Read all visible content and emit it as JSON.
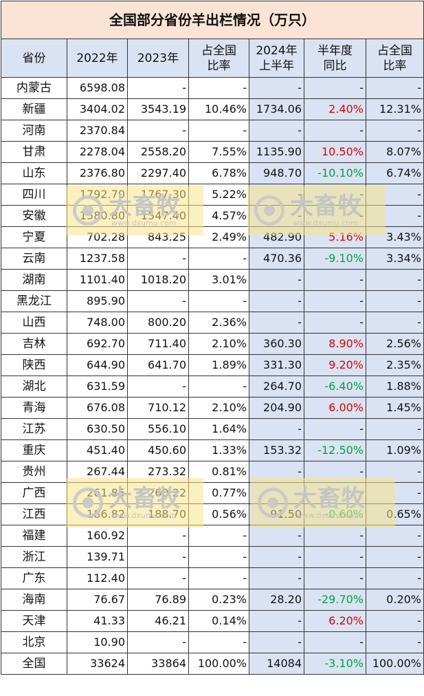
{
  "title": "全国部分省份羊出栏情况（万只）",
  "headers": [
    "省份",
    "2022年",
    "2023年",
    "占全国比率",
    "2024年上半年",
    "半年度同比",
    "占全国比率"
  ],
  "header_display": [
    "省份",
    "2022年",
    "2023年",
    "占全国\n比率",
    "2024年\n上半年",
    "半年度\n同比",
    "占全国\n比率"
  ],
  "rows": [
    {
      "province": "内蒙古",
      "y2022": "6598.08",
      "y2023": "-",
      "share2023": "-",
      "h2024": "-",
      "yoy": "-",
      "share2024": "-"
    },
    {
      "province": "新疆",
      "y2022": "3404.02",
      "y2023": "3543.19",
      "share2023": "10.46%",
      "h2024": "1734.06",
      "yoy": "2.40%",
      "share2024": "12.31%"
    },
    {
      "province": "河南",
      "y2022": "2370.84",
      "y2023": "-",
      "share2023": "-",
      "h2024": "-",
      "yoy": "-",
      "share2024": "-"
    },
    {
      "province": "甘肃",
      "y2022": "2278.04",
      "y2023": "2558.20",
      "share2023": "7.55%",
      "h2024": "1135.90",
      "yoy": "10.50%",
      "share2024": "8.07%"
    },
    {
      "province": "山东",
      "y2022": "2376.80",
      "y2023": "2297.40",
      "share2023": "6.78%",
      "h2024": "948.70",
      "yoy": "-10.10%",
      "share2024": "6.74%"
    },
    {
      "province": "四川",
      "y2022": "1792.70",
      "y2023": "1767.30",
      "share2023": "5.22%",
      "h2024": "-",
      "yoy": "-",
      "share2024": "-"
    },
    {
      "province": "安徽",
      "y2022": "1580.80",
      "y2023": "1547.40",
      "share2023": "4.57%",
      "h2024": "-",
      "yoy": "-",
      "share2024": "-"
    },
    {
      "province": "宁夏",
      "y2022": "702.28",
      "y2023": "843.25",
      "share2023": "2.49%",
      "h2024": "482.90",
      "yoy": "5.16%",
      "share2024": "3.43%"
    },
    {
      "province": "云南",
      "y2022": "1237.58",
      "y2023": "-",
      "share2023": "-",
      "h2024": "470.36",
      "yoy": "-9.10%",
      "share2024": "3.34%"
    },
    {
      "province": "湖南",
      "y2022": "1101.40",
      "y2023": "1018.20",
      "share2023": "3.01%",
      "h2024": "-",
      "yoy": "-",
      "share2024": "-"
    },
    {
      "province": "黑龙江",
      "y2022": "895.90",
      "y2023": "-",
      "share2023": "-",
      "h2024": "-",
      "yoy": "-",
      "share2024": "-"
    },
    {
      "province": "山西",
      "y2022": "748.00",
      "y2023": "800.20",
      "share2023": "2.36%",
      "h2024": "-",
      "yoy": "-",
      "share2024": "-"
    },
    {
      "province": "吉林",
      "y2022": "692.70",
      "y2023": "711.40",
      "share2023": "2.10%",
      "h2024": "360.30",
      "yoy": "8.90%",
      "share2024": "2.56%"
    },
    {
      "province": "陕西",
      "y2022": "644.90",
      "y2023": "641.70",
      "share2023": "1.89%",
      "h2024": "331.30",
      "yoy": "9.20%",
      "share2024": "2.35%"
    },
    {
      "province": "湖北",
      "y2022": "631.59",
      "y2023": "-",
      "share2023": "-",
      "h2024": "264.70",
      "yoy": "-6.40%",
      "share2024": "1.88%"
    },
    {
      "province": "青海",
      "y2022": "676.08",
      "y2023": "710.12",
      "share2023": "2.10%",
      "h2024": "204.90",
      "yoy": "6.00%",
      "share2024": "1.45%"
    },
    {
      "province": "江苏",
      "y2022": "630.50",
      "y2023": "556.10",
      "share2023": "1.64%",
      "h2024": "-",
      "yoy": "-",
      "share2024": "-"
    },
    {
      "province": "重庆",
      "y2022": "451.40",
      "y2023": "450.60",
      "share2023": "1.33%",
      "h2024": "153.32",
      "yoy": "-12.50%",
      "share2024": "1.09%"
    },
    {
      "province": "贵州",
      "y2022": "267.44",
      "y2023": "273.32",
      "share2023": "0.81%",
      "h2024": "-",
      "yoy": "-",
      "share2024": "-"
    },
    {
      "province": "广西",
      "y2022": "261.85",
      "y2023": "260.22",
      "share2023": "0.77%",
      "h2024": "-",
      "yoy": "-",
      "share2024": "-"
    },
    {
      "province": "江西",
      "y2022": "186.82",
      "y2023": "188.70",
      "share2023": "0.56%",
      "h2024": "91.50",
      "yoy": "-0.60%",
      "share2024": "0.65%"
    },
    {
      "province": "福建",
      "y2022": "160.92",
      "y2023": "-",
      "share2023": "-",
      "h2024": "-",
      "yoy": "-",
      "share2024": "-"
    },
    {
      "province": "浙江",
      "y2022": "139.71",
      "y2023": "-",
      "share2023": "-",
      "h2024": "-",
      "yoy": "-",
      "share2024": "-"
    },
    {
      "province": "广东",
      "y2022": "112.40",
      "y2023": "-",
      "share2023": "-",
      "h2024": "-",
      "yoy": "-",
      "share2024": "-"
    },
    {
      "province": "海南",
      "y2022": "76.67",
      "y2023": "76.89",
      "share2023": "0.23%",
      "h2024": "28.20",
      "yoy": "-29.70%",
      "share2024": "0.20%"
    },
    {
      "province": "天津",
      "y2022": "41.33",
      "y2023": "46.21",
      "share2023": "0.14%",
      "h2024": "-",
      "yoy": "6.20%",
      "share2024": "-"
    },
    {
      "province": "北京",
      "y2022": "10.90",
      "y2023": "-",
      "share2023": "-",
      "h2024": "-",
      "yoy": "-",
      "share2024": "-"
    },
    {
      "province": "全国",
      "y2022": "33624",
      "y2023": "33864",
      "share2023": "100.00%",
      "h2024": "14084",
      "yoy": "-3.10%",
      "share2024": "100.00%"
    }
  ],
  "colors": {
    "title_bg": "#fbe4d6",
    "header_bg": "#dae3f3",
    "shaded_bg": "#dae3f3",
    "positive_yoy": "#e00000",
    "negative_yoy": "#00a33a"
  },
  "watermark": {
    "brand": "大畜牧",
    "site": "www.dxumu.com"
  }
}
